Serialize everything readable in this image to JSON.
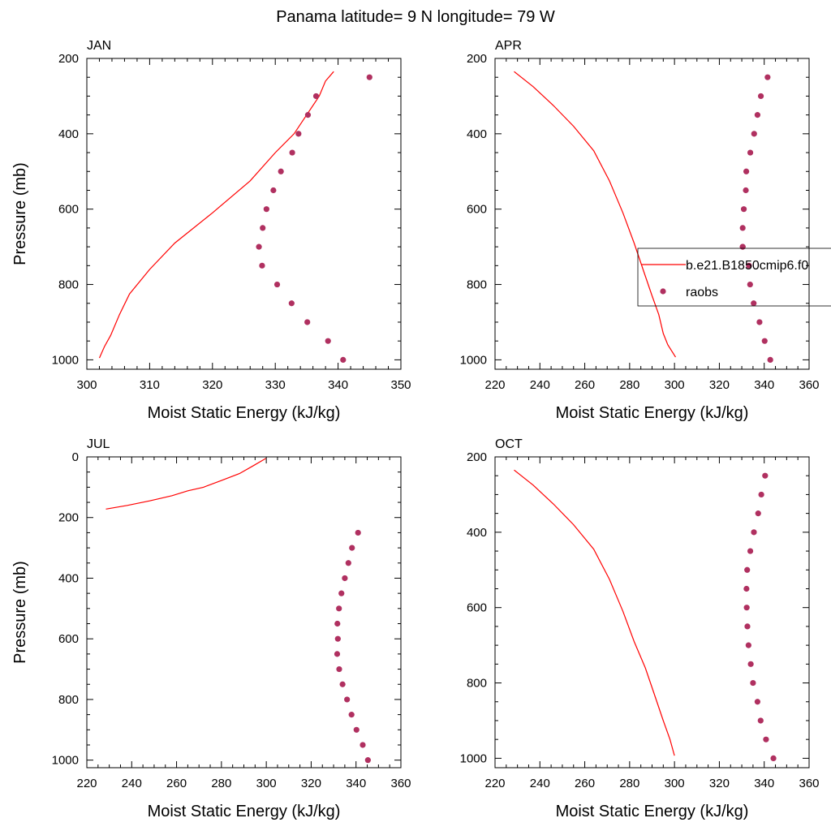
{
  "figure": {
    "title": "Panama  latitude= 9 N longitude= 79 W"
  },
  "colors": {
    "model": "#ff0000",
    "obs": "#b03060",
    "axis": "#000000",
    "legend_border": "#000000"
  },
  "legend": {
    "placement": "panel APR, right side overlapping edge",
    "entries": [
      {
        "label": "b.e21.B1850cmip6.f0",
        "style": "line"
      },
      {
        "label": "raobs",
        "style": "marker"
      }
    ]
  },
  "chart_data": [
    {
      "type": "line",
      "panel": "JAN",
      "title": "JAN",
      "xlabel": "Moist Static Energy (kJ/kg)",
      "ylabel": "Pressure (mb)",
      "xlim": [
        300,
        350
      ],
      "ylim": [
        200,
        1025
      ],
      "y_inverted": true,
      "xticks": [
        300,
        310,
        320,
        330,
        340,
        350
      ],
      "yticks": [
        200,
        400,
        600,
        800,
        1000
      ],
      "x_minor_step": 2,
      "y_minor_step": 50,
      "series": [
        {
          "style": "line",
          "x": [
            339.3,
            338,
            337,
            335,
            333,
            330,
            326,
            320,
            314,
            310,
            306.8,
            305.2,
            303.8,
            302.8,
            302.0
          ],
          "y": [
            235,
            260,
            300,
            350,
            400,
            450,
            525,
            610,
            690,
            760,
            825,
            880,
            935,
            965,
            995
          ]
        },
        {
          "style": "marker",
          "x": [
            345.0,
            336.5,
            335.2,
            333.7,
            332.7,
            330.9,
            329.7,
            328.6,
            328.0,
            327.4,
            327.9,
            330.3,
            332.6,
            335.1,
            338.4,
            340.8
          ],
          "y": [
            250,
            300,
            350,
            400,
            450,
            500,
            550,
            600,
            650,
            700,
            750,
            800,
            850,
            900,
            950,
            1000
          ]
        }
      ]
    },
    {
      "type": "line",
      "panel": "APR",
      "title": "APR",
      "xlabel": "Moist Static Energy (kJ/kg)",
      "ylabel": "",
      "xlim": [
        220,
        360
      ],
      "ylim": [
        200,
        1025
      ],
      "y_inverted": true,
      "xticks": [
        220,
        240,
        260,
        280,
        300,
        320,
        340,
        360
      ],
      "yticks": [
        200,
        400,
        600,
        800,
        1000
      ],
      "x_minor_step": 5,
      "y_minor_step": 50,
      "series": [
        {
          "style": "line",
          "x": [
            228.5,
            237,
            246,
            255,
            264,
            271,
            277,
            282,
            286,
            290,
            293,
            295,
            297,
            300.5
          ],
          "y": [
            235,
            275,
            325,
            380,
            445,
            525,
            610,
            690,
            760,
            830,
            880,
            930,
            960,
            993
          ]
        },
        {
          "style": "marker",
          "x": [
            341.5,
            338.5,
            337.0,
            335.5,
            333.8,
            332.0,
            331.8,
            330.9,
            330.4,
            330.4,
            330.4,
            333.2,
            333.7,
            335.3,
            337.9,
            340.2,
            342.7
          ],
          "y": [
            250,
            300,
            350,
            400,
            450,
            500,
            550,
            600,
            650,
            700,
            700,
            750,
            800,
            850,
            900,
            950,
            1000
          ]
        }
      ]
    },
    {
      "type": "line",
      "panel": "JUL",
      "title": "JUL",
      "xlabel": "Moist Static Energy (kJ/kg)",
      "ylabel": "Pressure (mb)",
      "xlim": [
        220,
        360
      ],
      "ylim": [
        0,
        1025
      ],
      "y_inverted": true,
      "xticks": [
        220,
        240,
        260,
        280,
        300,
        320,
        340,
        360
      ],
      "yticks": [
        0,
        200,
        400,
        600,
        800,
        1000
      ],
      "x_minor_step": 5,
      "y_minor_step": 50,
      "series": [
        {
          "style": "line",
          "x": [
            228.5,
            238,
            248,
            258,
            265,
            272,
            280,
            288,
            294,
            299.8
          ],
          "y": [
            172,
            160,
            145,
            128,
            112,
            100,
            78,
            55,
            30,
            5
          ]
        },
        {
          "style": "marker",
          "x": [
            340.9,
            338.2,
            336.6,
            335.0,
            333.5,
            332.4,
            331.7,
            331.9,
            331.6,
            332.5,
            334.0,
            336.0,
            338.0,
            340.2,
            343.0,
            345.3
          ],
          "y": [
            250,
            300,
            350,
            400,
            450,
            500,
            550,
            600,
            650,
            700,
            750,
            800,
            850,
            900,
            950,
            1000
          ]
        }
      ]
    },
    {
      "type": "line",
      "panel": "OCT",
      "title": "OCT",
      "xlabel": "Moist Static Energy (kJ/kg)",
      "ylabel": "",
      "xlim": [
        220,
        360
      ],
      "ylim": [
        200,
        1025
      ],
      "y_inverted": true,
      "xticks": [
        220,
        240,
        260,
        280,
        300,
        320,
        340,
        360
      ],
      "yticks": [
        200,
        400,
        600,
        800,
        1000
      ],
      "x_minor_step": 5,
      "y_minor_step": 50,
      "series": [
        {
          "style": "line",
          "x": [
            228.5,
            237,
            246,
            255,
            264,
            271,
            277,
            282,
            287,
            291,
            295,
            298,
            300
          ],
          "y": [
            235,
            275,
            325,
            380,
            445,
            525,
            610,
            690,
            760,
            830,
            900,
            950,
            993
          ]
        },
        {
          "style": "marker",
          "x": [
            340.4,
            338.7,
            337.3,
            335.4,
            333.8,
            332.4,
            332.1,
            332.2,
            332.5,
            333.0,
            334.0,
            335.0,
            337.0,
            338.4,
            340.8,
            344.1
          ],
          "y": [
            250,
            300,
            350,
            400,
            450,
            500,
            550,
            600,
            650,
            700,
            750,
            800,
            850,
            900,
            950,
            1000
          ]
        }
      ]
    }
  ]
}
